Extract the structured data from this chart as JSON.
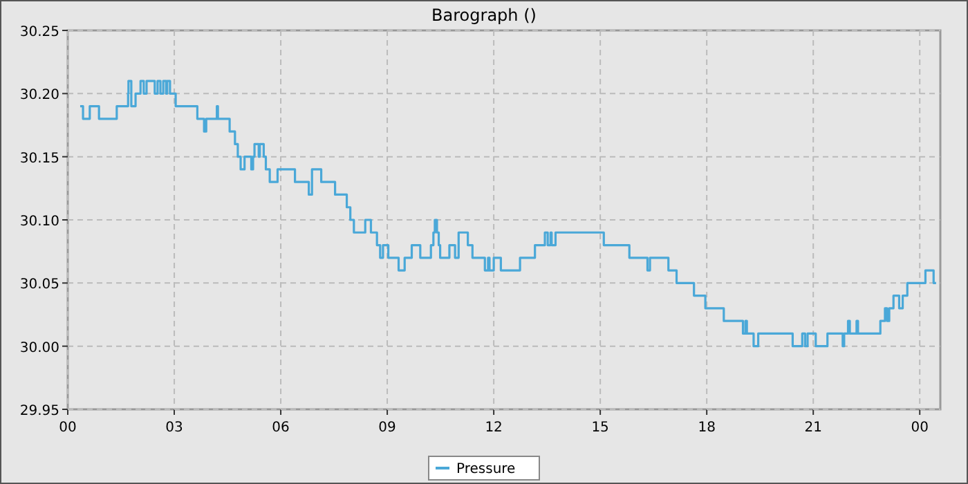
{
  "chart_data": {
    "type": "step",
    "title": "Barograph ()",
    "legend": "bottom",
    "grid": true,
    "xlim": [
      0,
      24.58
    ],
    "ylim": [
      29.95,
      30.25
    ],
    "xticks": [
      {
        "value": 0,
        "label": "00"
      },
      {
        "value": 3,
        "label": "03"
      },
      {
        "value": 6,
        "label": "06"
      },
      {
        "value": 9,
        "label": "09"
      },
      {
        "value": 12,
        "label": "12"
      },
      {
        "value": 15,
        "label": "15"
      },
      {
        "value": 18,
        "label": "18"
      },
      {
        "value": 21,
        "label": "21"
      },
      {
        "value": 24,
        "label": "00"
      }
    ],
    "yticks": [
      {
        "value": 29.95,
        "label": "29.95"
      },
      {
        "value": 30,
        "label": "30.00"
      },
      {
        "value": 30.05,
        "label": "30.05"
      },
      {
        "value": 30.1,
        "label": "30.10"
      },
      {
        "value": 30.15,
        "label": "30.15"
      },
      {
        "value": 30.2,
        "label": "30.20"
      },
      {
        "value": 30.25,
        "label": "30.25"
      }
    ],
    "series": [
      {
        "name": "Pressure",
        "color": "#4aa8d8",
        "x": [
          0.35,
          0.43,
          0.62,
          0.74,
          0.88,
          1.38,
          1.51,
          1.7,
          1.71,
          1.79,
          1.91,
          2.05,
          2.14,
          2.22,
          2.45,
          2.53,
          2.61,
          2.69,
          2.77,
          2.8,
          2.88,
          3.04,
          3.65,
          3.84,
          3.9,
          4.2,
          4.23,
          4.56,
          4.71,
          4.79,
          4.87,
          4.98,
          5.17,
          5.22,
          5.26,
          5.38,
          5.41,
          5.52,
          5.58,
          5.69,
          5.91,
          6.4,
          6.79,
          6.88,
          7.14,
          7.53,
          7.86,
          7.96,
          8.06,
          8.38,
          8.54,
          8.71,
          8.8,
          8.88,
          9.03,
          9.32,
          9.49,
          9.69,
          9.93,
          10.23,
          10.3,
          10.34,
          10.4,
          10.45,
          10.49,
          10.75,
          10.91,
          11.01,
          11.27,
          11.4,
          11.75,
          11.84,
          11.88,
          12,
          12.2,
          12.74,
          13.16,
          13.44,
          13.52,
          13.6,
          13.63,
          13.74,
          15.1,
          15.82,
          16.33,
          16.4,
          16.92,
          17.15,
          17.64,
          17.96,
          18.48,
          19.02,
          19.09,
          19.13,
          19.32,
          19.45,
          20.42,
          20.69,
          20.77,
          20.84,
          21.07,
          21.4,
          21.83,
          21.87,
          21.98,
          22.03,
          22.22,
          22.26,
          22.89,
          23.02,
          23.08,
          23.14,
          23.26,
          23.42,
          23.52,
          23.65,
          24.16,
          24.39,
          24.46
        ],
        "values": [
          30.19,
          30.18,
          30.19,
          30.19,
          30.18,
          30.19,
          30.19,
          30.2,
          30.21,
          30.19,
          30.2,
          30.21,
          30.2,
          30.21,
          30.2,
          30.21,
          30.2,
          30.21,
          30.2,
          30.21,
          30.2,
          30.19,
          30.18,
          30.17,
          30.18,
          30.19,
          30.18,
          30.17,
          30.16,
          30.15,
          30.14,
          30.15,
          30.14,
          30.15,
          30.16,
          30.15,
          30.16,
          30.15,
          30.14,
          30.13,
          30.14,
          30.13,
          30.12,
          30.14,
          30.13,
          30.12,
          30.11,
          30.1,
          30.09,
          30.1,
          30.09,
          30.08,
          30.07,
          30.08,
          30.07,
          30.06,
          30.07,
          30.08,
          30.07,
          30.08,
          30.09,
          30.1,
          30.09,
          30.08,
          30.07,
          30.08,
          30.07,
          30.09,
          30.08,
          30.07,
          30.06,
          30.07,
          30.06,
          30.07,
          30.06,
          30.07,
          30.08,
          30.09,
          30.08,
          30.09,
          30.08,
          30.09,
          30.08,
          30.07,
          30.06,
          30.07,
          30.06,
          30.05,
          30.04,
          30.03,
          30.02,
          30.01,
          30.02,
          30.01,
          30,
          30.01,
          30,
          30.01,
          30,
          30.01,
          30,
          30.01,
          30,
          30.01,
          30.02,
          30.01,
          30.02,
          30.01,
          30.02,
          30.03,
          30.02,
          30.03,
          30.04,
          30.03,
          30.04,
          30.05,
          30.06,
          30.05,
          30.05
        ]
      }
    ]
  }
}
